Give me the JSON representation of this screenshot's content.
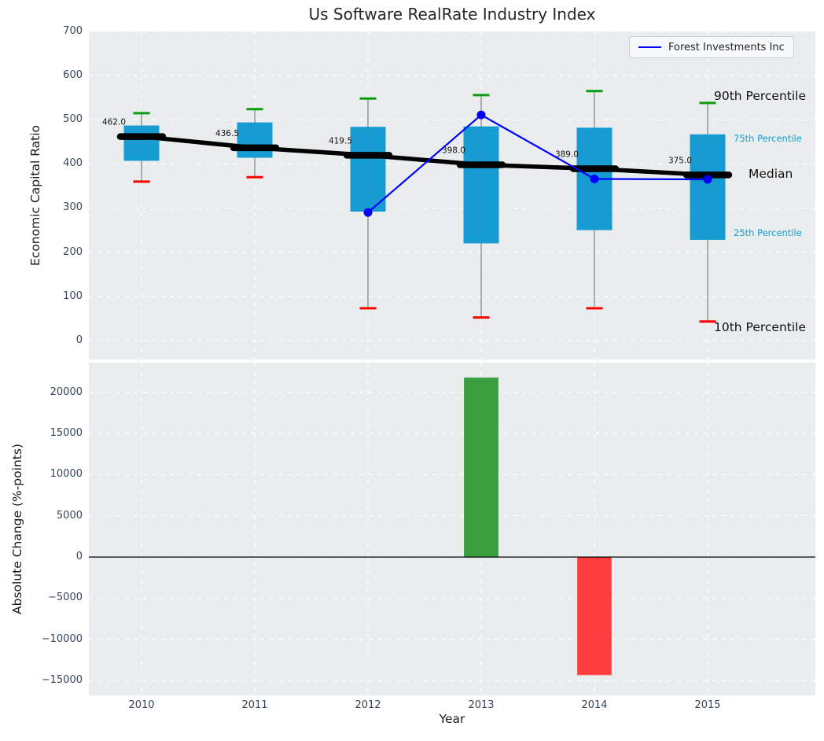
{
  "title": "Us Software RealRate Industry Index",
  "legend": {
    "label": "Forest Investments Inc",
    "line_color": "#0000ff"
  },
  "annotations": {
    "p90": "90th Percentile",
    "p75": "75th Percentile",
    "median": "Median",
    "p25": "25th Percentile",
    "p10": "10th Percentile"
  },
  "colors": {
    "plot_bg": "#e9edee",
    "grid": "#ffffff",
    "box_fill": "#169bd2",
    "median_line": "#000000",
    "whisker": "#7f7f7f",
    "cap_90": "#0e9b0e",
    "cap_10": "#ff0000",
    "company_line": "#0000ff",
    "bar_positive": "#3a9e3f",
    "bar_negative": "#fc3d3d",
    "tick_text": "#36455a"
  },
  "chart_data": [
    {
      "type": "boxplot+line",
      "title": "Us Software RealRate Industry Index",
      "ylabel": "Economic Capital Ratio",
      "categories": [
        "2010",
        "2011",
        "2012",
        "2013",
        "2014",
        "2015"
      ],
      "yticks": [
        0,
        100,
        200,
        300,
        400,
        500,
        600,
        700
      ],
      "ytick_labels": [
        "0",
        "100",
        "200",
        "300",
        "400",
        "500",
        "600",
        "700"
      ],
      "ylim": [
        -43,
        700
      ],
      "grid": "white dashed, on",
      "legend_position": "upper right",
      "boxes": [
        {
          "year": "2010",
          "p10": 360,
          "p25": 407,
          "median": 462.0,
          "p75": 487,
          "p90": 515
        },
        {
          "year": "2011",
          "p10": 370,
          "p25": 414,
          "median": 436.5,
          "p75": 494,
          "p90": 524
        },
        {
          "year": "2012",
          "p10": 73,
          "p25": 292,
          "median": 419.5,
          "p75": 484,
          "p90": 548
        },
        {
          "year": "2013",
          "p10": 52,
          "p25": 220,
          "median": 398.0,
          "p75": 485,
          "p90": 556
        },
        {
          "year": "2014",
          "p10": 73,
          "p25": 250,
          "median": 389.0,
          "p75": 482,
          "p90": 565
        },
        {
          "year": "2015",
          "p10": 43,
          "p25": 228,
          "median": 375.0,
          "p75": 467,
          "p90": 538
        }
      ],
      "median_labels": [
        "462.0",
        "436.5",
        "419.5",
        "398.0",
        "389.0",
        "375.0"
      ],
      "series": [
        {
          "name": "Forest Investments Inc",
          "x": [
            "2012",
            "2013",
            "2014",
            "2015"
          ],
          "values": [
            290,
            511,
            366,
            365
          ]
        }
      ]
    },
    {
      "type": "bar",
      "ylabel": "Absolute Change (%-points)",
      "xlabel": "Year",
      "categories": [
        "2010",
        "2011",
        "2012",
        "2013",
        "2014",
        "2015"
      ],
      "values": [
        null,
        null,
        null,
        21750,
        -14300,
        null
      ],
      "yticks": [
        -15000,
        -10000,
        -5000,
        0,
        5000,
        10000,
        15000,
        20000
      ],
      "ytick_labels": [
        "−15000",
        "−10000",
        "−5000",
        "0",
        "5000",
        "10000",
        "15000",
        "20000"
      ],
      "ylim": [
        -16800,
        23600
      ],
      "grid": "white dashed, on",
      "zero_line": "black solid"
    }
  ]
}
